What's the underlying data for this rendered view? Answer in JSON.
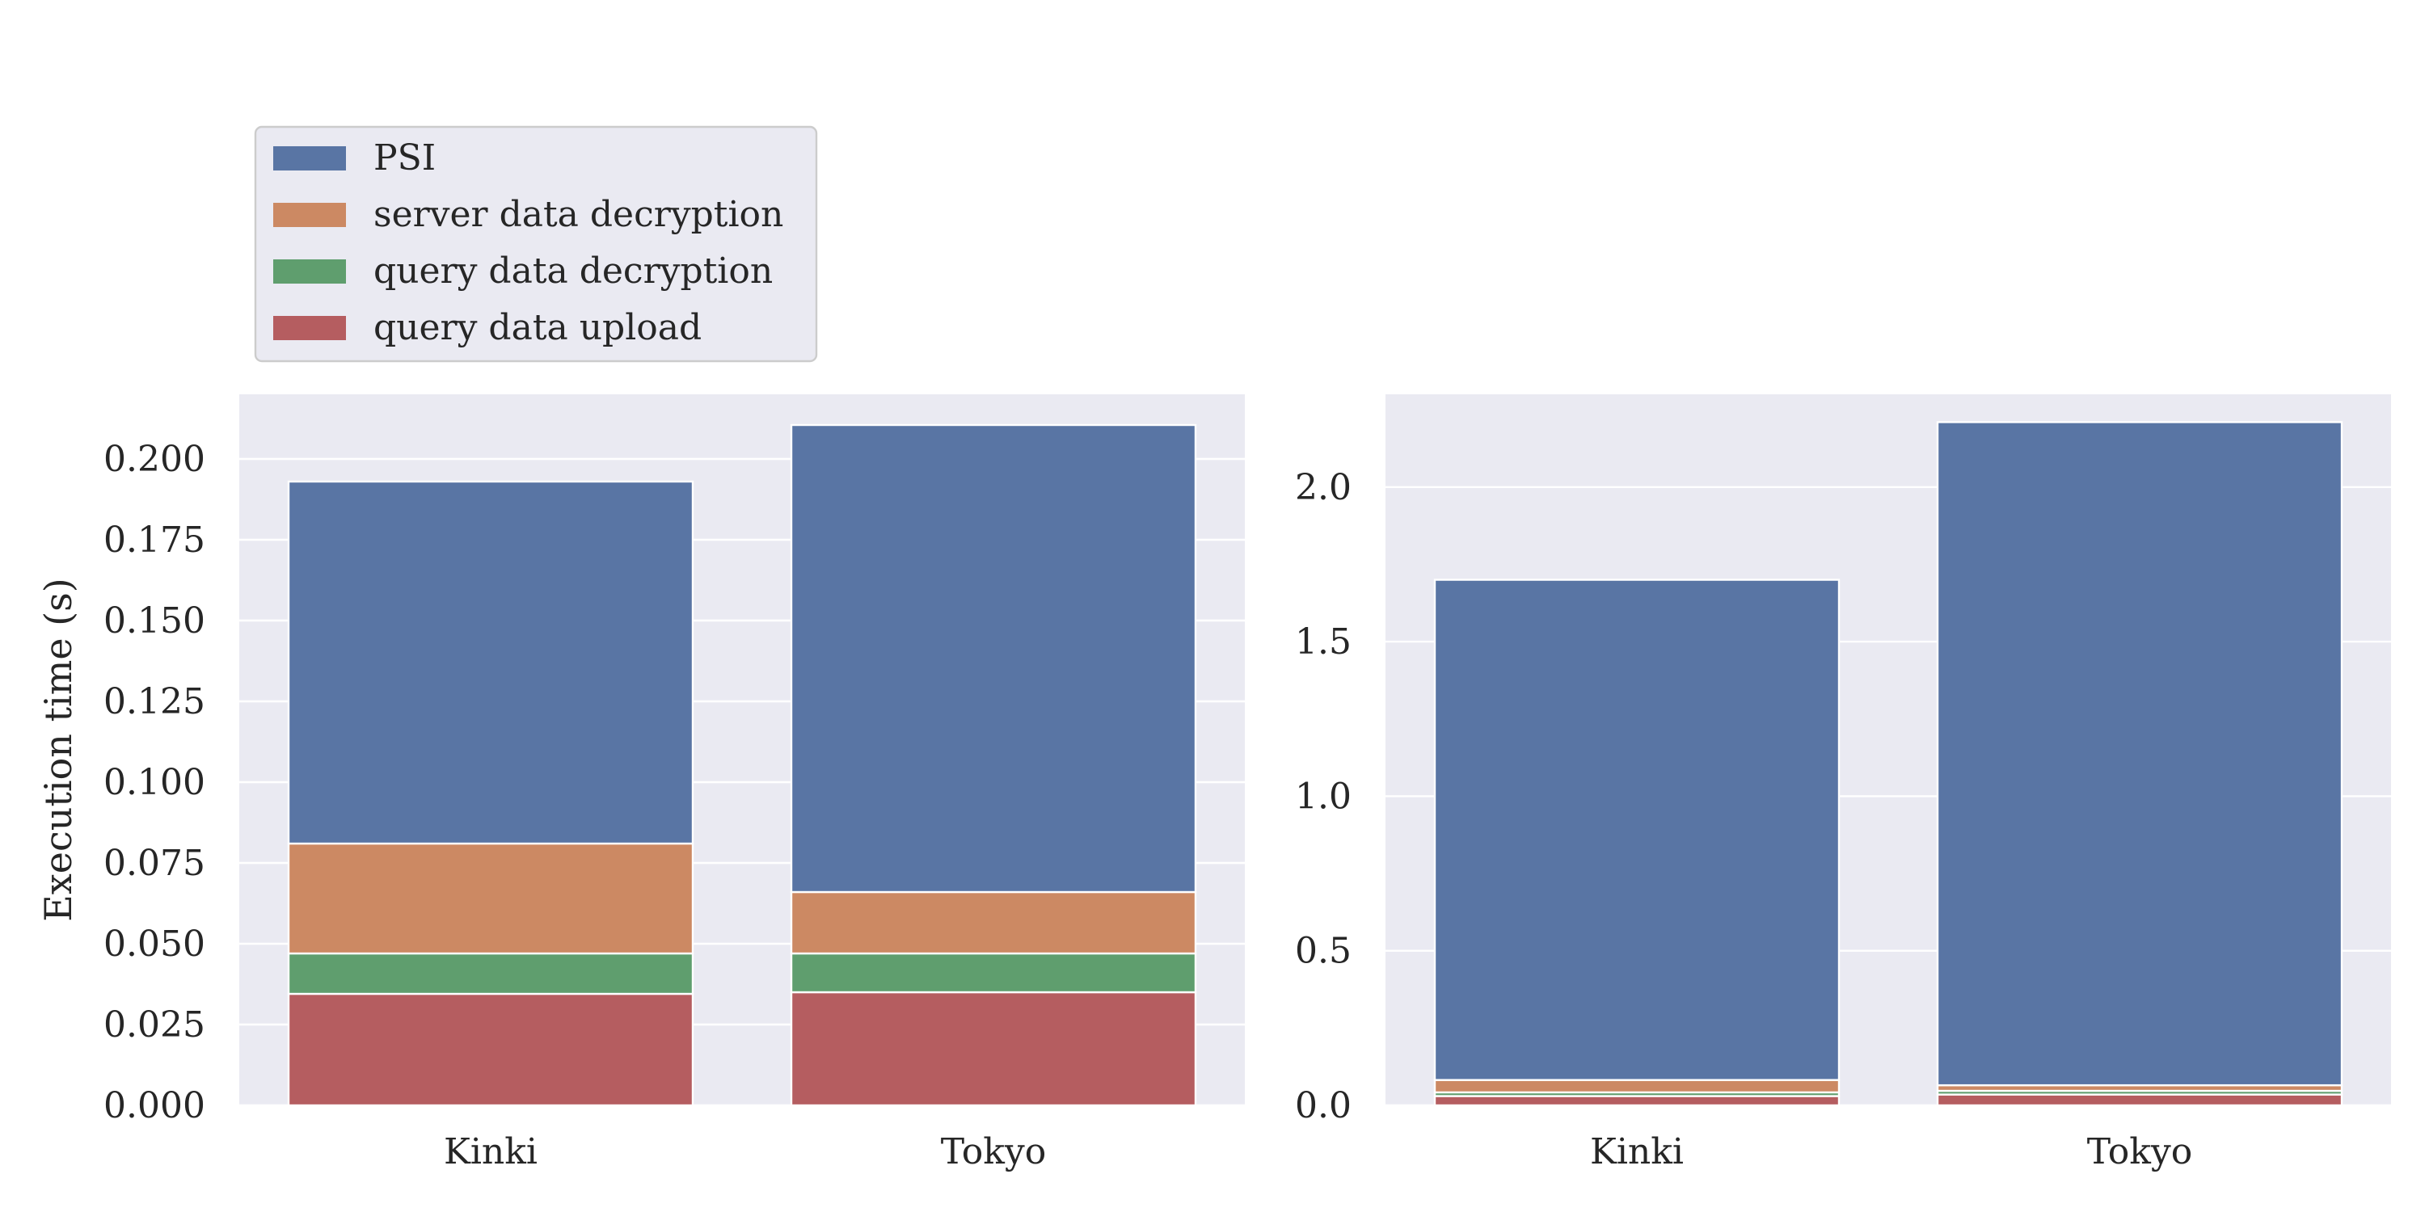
{
  "chart_data": [
    {
      "type": "bar",
      "stacked": true,
      "categories": [
        "Kinki",
        "Tokyo"
      ],
      "ylabel": "Execution time (s)",
      "ylim": [
        0,
        0.22
      ],
      "yticks": [
        "0.000",
        "0.025",
        "0.050",
        "0.075",
        "0.100",
        "0.125",
        "0.150",
        "0.175",
        "0.200"
      ],
      "grid": true,
      "series": [
        {
          "name": "query data upload",
          "color": "#b55d60",
          "values": [
            0.0345,
            0.035
          ]
        },
        {
          "name": "query data decryption",
          "color": "#5f9e6e",
          "values": [
            0.0125,
            0.012
          ]
        },
        {
          "name": "server data decryption",
          "color": "#cc8963",
          "values": [
            0.034,
            0.019
          ]
        },
        {
          "name": "PSI",
          "color": "#5975a4",
          "values": [
            0.112,
            0.1445
          ]
        }
      ]
    },
    {
      "type": "bar",
      "stacked": true,
      "categories": [
        "Kinki",
        "Tokyo"
      ],
      "ylabel": "",
      "ylim": [
        0,
        2.3
      ],
      "yticks": [
        "0.0",
        "0.5",
        "1.0",
        "1.5",
        "2.0"
      ],
      "grid": true,
      "series": [
        {
          "name": "query data upload",
          "color": "#b55d60",
          "values": [
            0.03,
            0.035
          ]
        },
        {
          "name": "query data decryption",
          "color": "#5f9e6e",
          "values": [
            0.012,
            0.012
          ]
        },
        {
          "name": "server data decryption",
          "color": "#cc8963",
          "values": [
            0.04,
            0.018
          ]
        },
        {
          "name": "PSI",
          "color": "#5975a4",
          "values": [
            1.618,
            2.145
          ]
        }
      ]
    }
  ],
  "legend": {
    "placement": "top-left",
    "entries": [
      {
        "label": "PSI",
        "color": "#5975a4"
      },
      {
        "label": "server data decryption",
        "color": "#cc8963"
      },
      {
        "label": "query data decryption",
        "color": "#5f9e6e"
      },
      {
        "label": "query data upload",
        "color": "#b55d60"
      }
    ]
  }
}
